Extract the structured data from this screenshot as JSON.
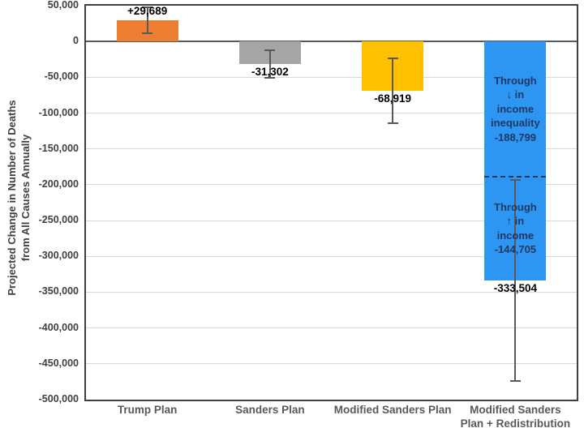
{
  "chart_data": {
    "type": "bar",
    "title": "",
    "ylabel_line1": "Projected Change in Number of Deaths",
    "ylabel_line2": "from All Causes Annually",
    "ylim": [
      -500000,
      50000
    ],
    "ytick_interval": 50000,
    "yticks": [
      {
        "value": 50000,
        "label": "50,000"
      },
      {
        "value": 0,
        "label": "0"
      },
      {
        "value": -50000,
        "label": "-50,000"
      },
      {
        "value": -100000,
        "label": "-100,000"
      },
      {
        "value": -150000,
        "label": "-150,000"
      },
      {
        "value": -200000,
        "label": "-200,000"
      },
      {
        "value": -250000,
        "label": "-250,000"
      },
      {
        "value": -300000,
        "label": "-300,000"
      },
      {
        "value": -350000,
        "label": "-350,000"
      },
      {
        "value": -400000,
        "label": "-400,000"
      },
      {
        "value": -450000,
        "label": "-450,000"
      },
      {
        "value": -500000,
        "label": "-500,000"
      }
    ],
    "grid": "horizontal",
    "legend": "none",
    "categories": [
      "Trump Plan",
      "Sanders Plan",
      "Modified Sanders Plan",
      "Modified Sanders\nPlan + Redistribution"
    ],
    "bars": [
      {
        "category": "Trump Plan",
        "value": 29689,
        "label": "+29,689",
        "color": "#ED7D31",
        "error_high": 47689,
        "error_low": 11689
      },
      {
        "category": "Sanders Plan",
        "value": -31302,
        "label": "-31,302",
        "color": "#A5A5A5",
        "error_high": -12302,
        "error_low": -50302
      },
      {
        "category": "Modified Sanders Plan",
        "value": -68919,
        "label": "-68,919",
        "color": "#FFC000",
        "error_high": -23919,
        "error_low": -113919
      },
      {
        "category": "Modified Sanders\nPlan + Redistribution",
        "value": -333504,
        "label": "-333,504",
        "color": "#2D96F2",
        "error_high": -193504,
        "error_low": -473504,
        "divider_value": -188799,
        "segment_annotations": [
          {
            "lines": [
              "Through",
              "↓ in",
              "income",
              "inequality",
              "-188,799"
            ]
          },
          {
            "lines": [
              "Through",
              "↑ in",
              "income",
              "-144,705"
            ]
          }
        ]
      }
    ],
    "colors": {
      "annotation_text": "#1F3864",
      "gridline": "#D9D9D9",
      "zero_line": "#595959",
      "plot_border": "#404040",
      "error_bar": "#595959",
      "tick_label": "#404040",
      "category_label": "#595959",
      "value_label": "#000000"
    }
  }
}
